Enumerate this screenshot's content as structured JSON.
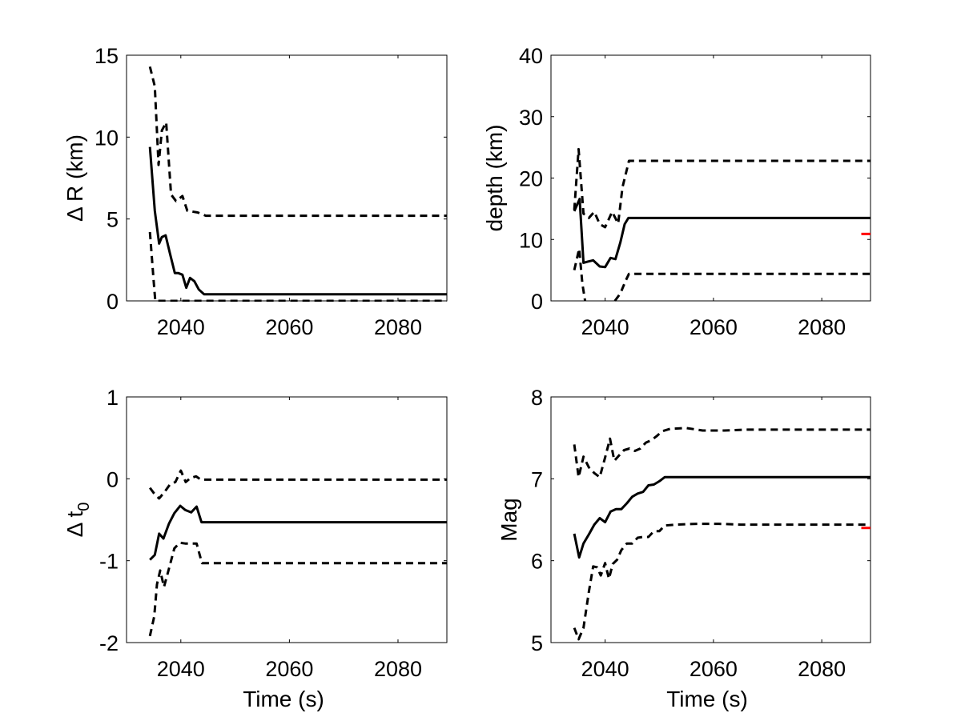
{
  "chart_data": [
    {
      "type": "line",
      "ylabel": "Δ R (km)",
      "xlabel": "",
      "xlim": [
        2030,
        2089
      ],
      "ylim": [
        0,
        15
      ],
      "xticks": [
        2040,
        2060,
        2080
      ],
      "yticks": [
        0,
        5,
        10,
        15
      ],
      "grid": false,
      "series": [
        {
          "style": "solid",
          "x": [
            2034.3,
            2035.2,
            2036,
            2036.5,
            2037.2,
            2038,
            2038.9,
            2039.5,
            2040.3,
            2041,
            2041.7,
            2042.5,
            2043.3,
            2044.3,
            2089
          ],
          "y": [
            9.4,
            5.5,
            3.5,
            3.9,
            4.0,
            2.9,
            1.7,
            1.7,
            1.6,
            0.8,
            1.4,
            1.2,
            0.7,
            0.4,
            0.4
          ]
        },
        {
          "style": "dashed",
          "x": [
            2034.3,
            2035.2,
            2035.9,
            2036.5,
            2037.3,
            2038.2,
            2039.1,
            2040.3,
            2041.2,
            2043.1,
            2044.6,
            2089
          ],
          "y": [
            14.3,
            13.1,
            8.3,
            10.4,
            10.9,
            6.5,
            6.1,
            6.4,
            5.5,
            5.4,
            5.2,
            5.2
          ]
        },
        {
          "style": "dashed",
          "x": [
            2034.3,
            2035,
            2035.3,
            2089
          ],
          "y": [
            4.2,
            1.2,
            0,
            0
          ]
        }
      ],
      "reference_markers": []
    },
    {
      "type": "line",
      "ylabel": "depth (km)",
      "xlabel": "",
      "xlim": [
        2030,
        2089
      ],
      "ylim": [
        0,
        40
      ],
      "xticks": [
        2040,
        2060,
        2080
      ],
      "yticks": [
        0,
        10,
        20,
        30,
        40
      ],
      "grid": false,
      "series": [
        {
          "style": "solid",
          "x": [
            2034.3,
            2035.3,
            2036,
            2036.8,
            2037.8,
            2039,
            2040,
            2041,
            2041.9,
            2042.8,
            2043.6,
            2044.3,
            2089
          ],
          "y": [
            14.6,
            16.6,
            6.2,
            6.4,
            6.6,
            5.6,
            5.5,
            7.0,
            6.8,
            9.5,
            12.5,
            13.5,
            13.5
          ]
        },
        {
          "style": "dashed",
          "x": [
            2034.3,
            2035.1,
            2036,
            2037,
            2038,
            2039,
            2040,
            2041.3,
            2042.4,
            2043.2,
            2044.4,
            2089
          ],
          "y": [
            14.8,
            24.7,
            14.2,
            13.5,
            14.5,
            12.5,
            12.0,
            14.5,
            12.6,
            18.5,
            22.8,
            22.8
          ]
        },
        {
          "style": "dashed",
          "x": [
            2034.3,
            2035.2,
            2035.8,
            2036.3
          ],
          "y": [
            5.0,
            8.5,
            2.8,
            0
          ]
        },
        {
          "style": "dashed",
          "x": [
            2041.8,
            2042.8,
            2043.8,
            2044.4,
            2089
          ],
          "y": [
            0,
            1.2,
            3.3,
            4.4,
            4.4
          ]
        }
      ],
      "reference_markers": [
        {
          "x0": 2087.3,
          "x1": 2089,
          "y": 10.9,
          "color": "#ff0000"
        }
      ]
    },
    {
      "type": "line",
      "ylabel": "Δ t",
      "ylabel_subscript": "0",
      "xlabel": "Time (s)",
      "xlim": [
        2030,
        2089
      ],
      "ylim": [
        -2,
        1
      ],
      "xticks": [
        2040,
        2060,
        2080
      ],
      "yticks": [
        -2,
        -1,
        0,
        1
      ],
      "grid": false,
      "series": [
        {
          "style": "solid",
          "x": [
            2034.3,
            2035.2,
            2036,
            2036.8,
            2037.8,
            2038.8,
            2039.9,
            2040.8,
            2041.9,
            2042.9,
            2043.8,
            2089
          ],
          "y": [
            -0.99,
            -0.93,
            -0.67,
            -0.73,
            -0.55,
            -0.42,
            -0.33,
            -0.38,
            -0.41,
            -0.34,
            -0.53,
            -0.53
          ]
        },
        {
          "style": "dashed",
          "x": [
            2034.3,
            2035.2,
            2036,
            2037,
            2038,
            2039,
            2040,
            2040.9,
            2041.8,
            2042.8,
            2043.7,
            2089
          ],
          "y": [
            -0.11,
            -0.19,
            -0.24,
            -0.16,
            -0.07,
            -0.04,
            0.1,
            -0.04,
            0.01,
            0.03,
            -0.01,
            -0.01
          ]
        },
        {
          "style": "dashed",
          "x": [
            2034.3,
            2035.1,
            2035.6,
            2036.2,
            2036.9,
            2037.8,
            2038.8,
            2039.8,
            2040.8,
            2041.9,
            2042.9,
            2043.9,
            2089
          ],
          "y": [
            -1.92,
            -1.68,
            -1.29,
            -1.12,
            -1.32,
            -1.1,
            -0.85,
            -0.78,
            -0.79,
            -0.79,
            -0.79,
            -1.03,
            -1.03
          ]
        }
      ],
      "reference_markers": []
    },
    {
      "type": "line",
      "ylabel": "Mag",
      "xlabel": "Time (s)",
      "xlim": [
        2030,
        2089
      ],
      "ylim": [
        5,
        8
      ],
      "xticks": [
        2040,
        2060,
        2080
      ],
      "yticks": [
        5,
        6,
        7,
        8
      ],
      "grid": false,
      "series": [
        {
          "style": "solid",
          "x": [
            2034.3,
            2035.2,
            2036,
            2037,
            2038,
            2039,
            2040,
            2041,
            2042,
            2043,
            2044,
            2045,
            2046,
            2047,
            2048,
            2049,
            2050,
            2051,
            2089
          ],
          "y": [
            6.33,
            6.04,
            6.21,
            6.32,
            6.44,
            6.52,
            6.47,
            6.6,
            6.63,
            6.63,
            6.7,
            6.78,
            6.82,
            6.84,
            6.92,
            6.93,
            6.97,
            7.02,
            7.02
          ]
        },
        {
          "style": "dashed",
          "x": [
            2034.3,
            2035.1,
            2036,
            2037,
            2038,
            2039,
            2040,
            2040.9,
            2041.7,
            2042.5,
            2043.5,
            2044.5,
            2045.5,
            2046.5,
            2047.5,
            2048.5,
            2049.5,
            2050.5,
            2052,
            2055,
            2058,
            2062,
            2066,
            2089
          ],
          "y": [
            7.42,
            7.02,
            7.27,
            7.14,
            7.07,
            7.02,
            7.26,
            7.49,
            7.22,
            7.28,
            7.35,
            7.37,
            7.34,
            7.37,
            7.44,
            7.47,
            7.52,
            7.58,
            7.61,
            7.62,
            7.59,
            7.59,
            7.6,
            7.6
          ]
        },
        {
          "style": "dashed",
          "x": [
            2034.3,
            2035.1,
            2036,
            2037,
            2037.8,
            2038.5,
            2039.2,
            2040,
            2040.7,
            2041.4,
            2042.2,
            2043,
            2044,
            2045,
            2046,
            2047,
            2048,
            2049,
            2050,
            2051,
            2053,
            2057,
            2061,
            2065,
            2089
          ],
          "y": [
            5.18,
            5.04,
            5.18,
            5.62,
            5.93,
            5.92,
            5.82,
            5.97,
            5.78,
            5.96,
            6.01,
            6.13,
            6.21,
            6.21,
            6.28,
            6.29,
            6.29,
            6.36,
            6.36,
            6.43,
            6.44,
            6.45,
            6.45,
            6.44,
            6.44
          ]
        }
      ],
      "reference_markers": [
        {
          "x0": 2087.3,
          "x1": 2089,
          "y": 6.4,
          "color": "#ff0000"
        }
      ]
    }
  ]
}
